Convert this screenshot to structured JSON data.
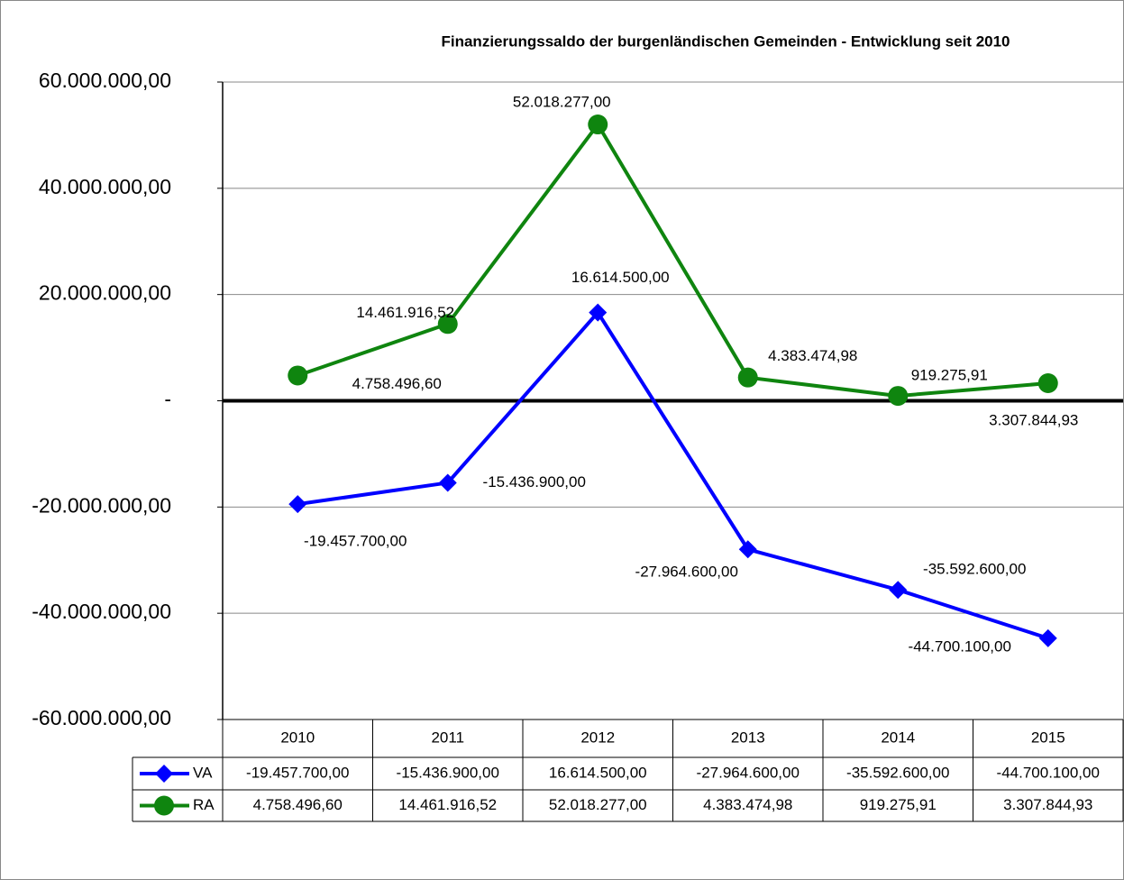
{
  "chart_data": {
    "type": "line",
    "title": "Finanzierungssaldo der burgenländischen Gemeinden - Entwicklung seit 2010",
    "categories": [
      "2010",
      "2011",
      "2012",
      "2013",
      "2014",
      "2015"
    ],
    "series": [
      {
        "name": "VA",
        "color": "#0000ff",
        "marker": "diamond",
        "values": [
          -19457700.0,
          -15436900.0,
          16614500.0,
          -27964600.0,
          -35592600.0,
          -44700100.0
        ],
        "value_labels": [
          "-19.457.700,00",
          "-15.436.900,00",
          "16.614.500,00",
          "-27.964.600,00",
          "-35.592.600,00",
          "-44.700.100,00"
        ]
      },
      {
        "name": "RA",
        "color": "#0f850f",
        "marker": "circle",
        "values": [
          4758496.6,
          14461916.52,
          52018277.0,
          4383474.98,
          919275.91,
          3307844.93
        ],
        "value_labels": [
          "4.758.496,60",
          "14.461.916,52",
          "52.018.277,00",
          "4.383.474,98",
          "919.275,91",
          "3.307.844,93"
        ]
      }
    ],
    "ylim": [
      -60000000,
      60000000
    ],
    "yticks": [
      {
        "value": -60000000,
        "label": "-60.000.000,00"
      },
      {
        "value": -40000000,
        "label": "-40.000.000,00"
      },
      {
        "value": -20000000,
        "label": "-20.000.000,00"
      },
      {
        "value": 0,
        "label": "-"
      },
      {
        "value": 20000000,
        "label": "20.000.000,00"
      },
      {
        "value": 40000000,
        "label": "40.000.000,00"
      },
      {
        "value": 60000000,
        "label": "60.000.000,00"
      }
    ],
    "grid": true,
    "data_table": true
  }
}
